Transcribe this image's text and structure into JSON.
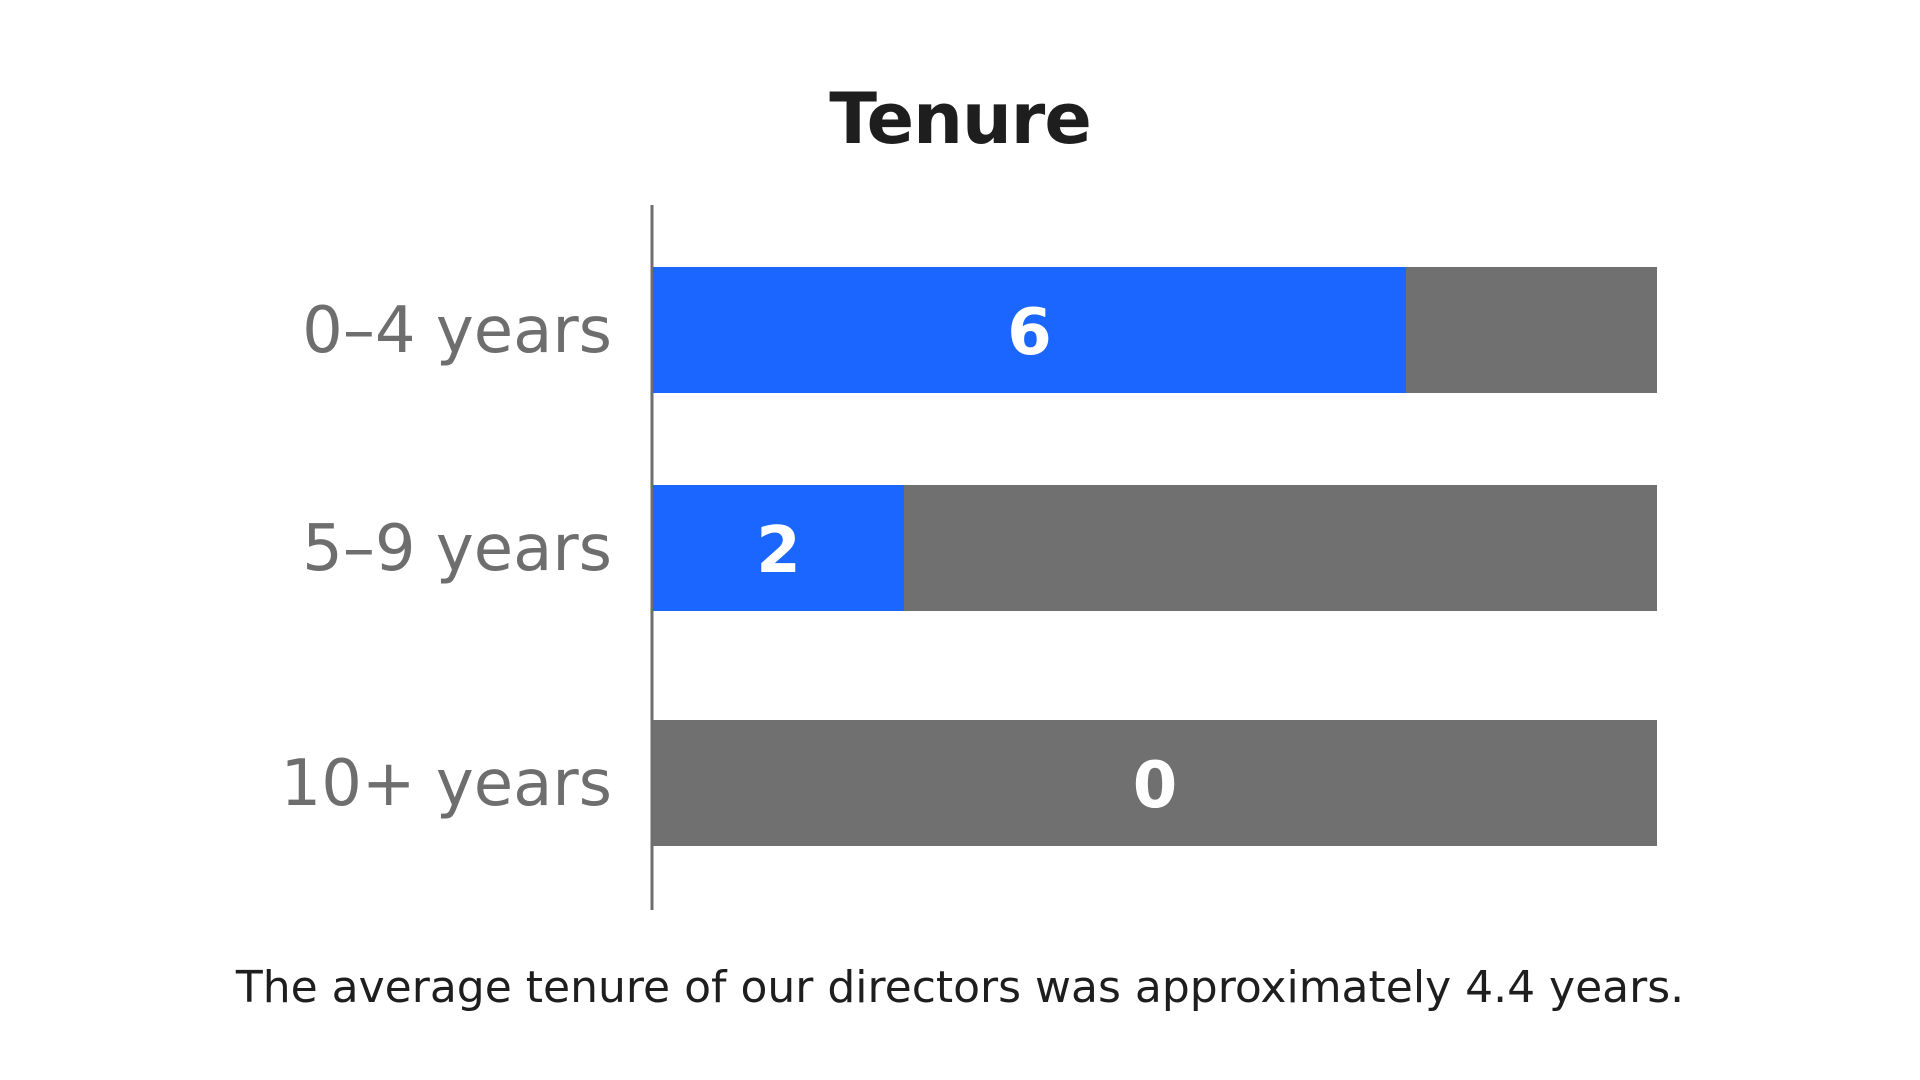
{
  "chart_data": {
    "type": "bar",
    "orientation": "horizontal",
    "stacked_to_total": true,
    "title": "Tenure",
    "categories": [
      "0–4 years",
      "5–9 years",
      "10+ years"
    ],
    "values": [
      6,
      2,
      0
    ],
    "total": 8,
    "value_labels": [
      "6",
      "2",
      "0"
    ],
    "colors": {
      "value": "#1a66ff",
      "remainder": "#707070",
      "axis": "#6e6e6e",
      "category_text": "#6e6e6e",
      "value_text": "#ffffff"
    },
    "footnote": "The average tenure of our directors was approximately 4.4 years."
  }
}
